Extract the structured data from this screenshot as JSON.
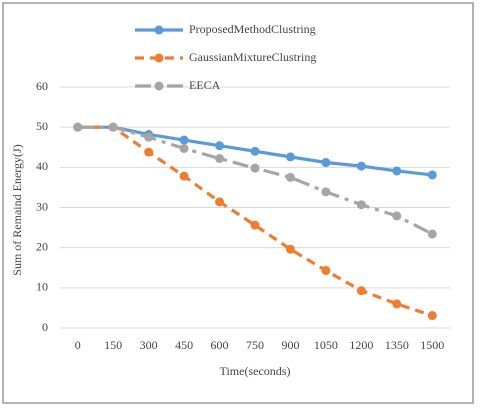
{
  "chart_data": {
    "type": "line",
    "x": [
      0,
      150,
      300,
      450,
      600,
      750,
      900,
      1050,
      1200,
      1350,
      1500
    ],
    "xlim": [
      -75,
      1575
    ],
    "xticks": [
      0,
      150,
      300,
      450,
      600,
      750,
      900,
      1050,
      1200,
      1350,
      1500
    ],
    "ylim": [
      0,
      60
    ],
    "yticks": [
      0,
      10,
      20,
      30,
      40,
      50,
      60
    ],
    "xlabel": "Time(seconds)",
    "ylabel": "Sum of Remaind Energy(J)",
    "grid": true,
    "legend": "top",
    "series": [
      {
        "name": "ProposedMethodClustring",
        "color": "#5b9bd5",
        "style": "solid",
        "values": [
          50,
          50,
          48.2,
          46.8,
          45.4,
          44,
          42.6,
          41.2,
          40.3,
          39.1,
          38.1
        ]
      },
      {
        "name": "GaussianMixtureClustring",
        "color": "#ed7d31",
        "style": "dashed",
        "values": [
          50,
          50,
          43.8,
          37.8,
          31.4,
          25.6,
          19.6,
          14.3,
          9.3,
          6,
          3.1
        ]
      },
      {
        "name": "EECA",
        "color": "#a5a5a5",
        "style": "dashdot",
        "values": [
          50,
          50,
          47.5,
          44.7,
          42.2,
          39.8,
          37.5,
          33.9,
          30.7,
          27.9,
          23.4
        ]
      }
    ]
  }
}
